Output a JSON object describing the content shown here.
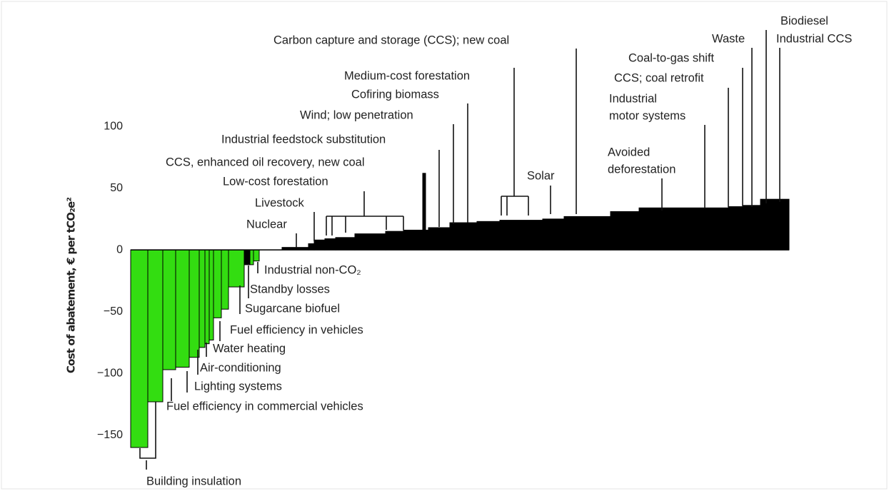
{
  "chart_data": {
    "type": "bar",
    "ylabel": "Cost of abatement, € per tCO₂e²",
    "ylim": [
      -175,
      200
    ],
    "yticks": [
      {
        "value": 100,
        "label": "100"
      },
      {
        "value": 50,
        "label": "50"
      },
      0,
      {
        "value": -50,
        "label": "−50"
      },
      {
        "value": -100,
        "label": "−100"
      },
      {
        "value": -150,
        "label": "−150"
      }
    ],
    "widths": [
      24,
      21,
      18,
      19,
      14,
      8,
      6,
      6,
      11,
      10,
      22,
      8,
      5,
      8,
      32,
      37,
      8,
      15,
      15,
      27,
      43,
      25,
      27,
      4,
      4,
      30,
      38,
      32,
      60,
      30,
      65,
      40,
      125,
      20,
      25,
      40
    ],
    "values": [
      -160,
      -123,
      -97,
      -95,
      -87,
      -79,
      -76,
      -73,
      -55,
      -48,
      -30,
      -12,
      -12,
      -9,
      0,
      2,
      5,
      8,
      9,
      10,
      13,
      15,
      16,
      62,
      16,
      18,
      22,
      23,
      24,
      25,
      27,
      31,
      34,
      35,
      36,
      41
    ],
    "colors": [
      "#33dd11",
      "#33dd11",
      "#33dd11",
      "#33dd11",
      "#33dd11",
      "#33dd11",
      "#33dd11",
      "#33dd11",
      "#33dd11",
      "#33dd11",
      "#33dd11",
      "#000000",
      "#33dd11",
      "#33dd11",
      "#000000",
      "#000000",
      "#000000",
      "#000000",
      "#000000",
      "#000000",
      "#000000",
      "#000000",
      "#000000",
      "#000000",
      "#000000",
      "#000000",
      "#000000",
      "#000000",
      "#000000",
      "#000000",
      "#000000",
      "#000000",
      "#000000",
      "#000000",
      "#000000",
      "#000000"
    ],
    "annotations": [
      [
        "Carbon capture and storage (CCS); new coal"
      ],
      [
        "Medium-cost forestation"
      ],
      [
        "Cofiring biomass"
      ],
      [
        "Wind; low penetration"
      ],
      [
        "Industrial feedstock substitution"
      ],
      [
        "CCS, enhanced oil recovery, new coal"
      ],
      [
        "Low-cost forestation"
      ],
      [
        "Livestock"
      ],
      [
        "Nuclear"
      ],
      [
        "Solar"
      ],
      [
        "Avoided",
        "deforestation"
      ],
      [
        "Industrial",
        "motor systems"
      ],
      [
        "CCS; coal retrofit"
      ],
      [
        "Coal-to-gas shift"
      ],
      [
        "Waste"
      ],
      [
        "Biodiesel"
      ],
      [
        "Industrial CCS"
      ],
      [
        "Industrial non-CO₂"
      ],
      [
        "Standby losses"
      ],
      [
        "Sugarcane biofuel"
      ],
      [
        "Fuel efficiency in vehicles"
      ],
      [
        "Water heating"
      ],
      [
        "Air-conditioning"
      ],
      [
        "Lighting systems"
      ],
      [
        "Fuel efficiency in commercial vehicles"
      ],
      [
        "Building insulation"
      ]
    ]
  }
}
